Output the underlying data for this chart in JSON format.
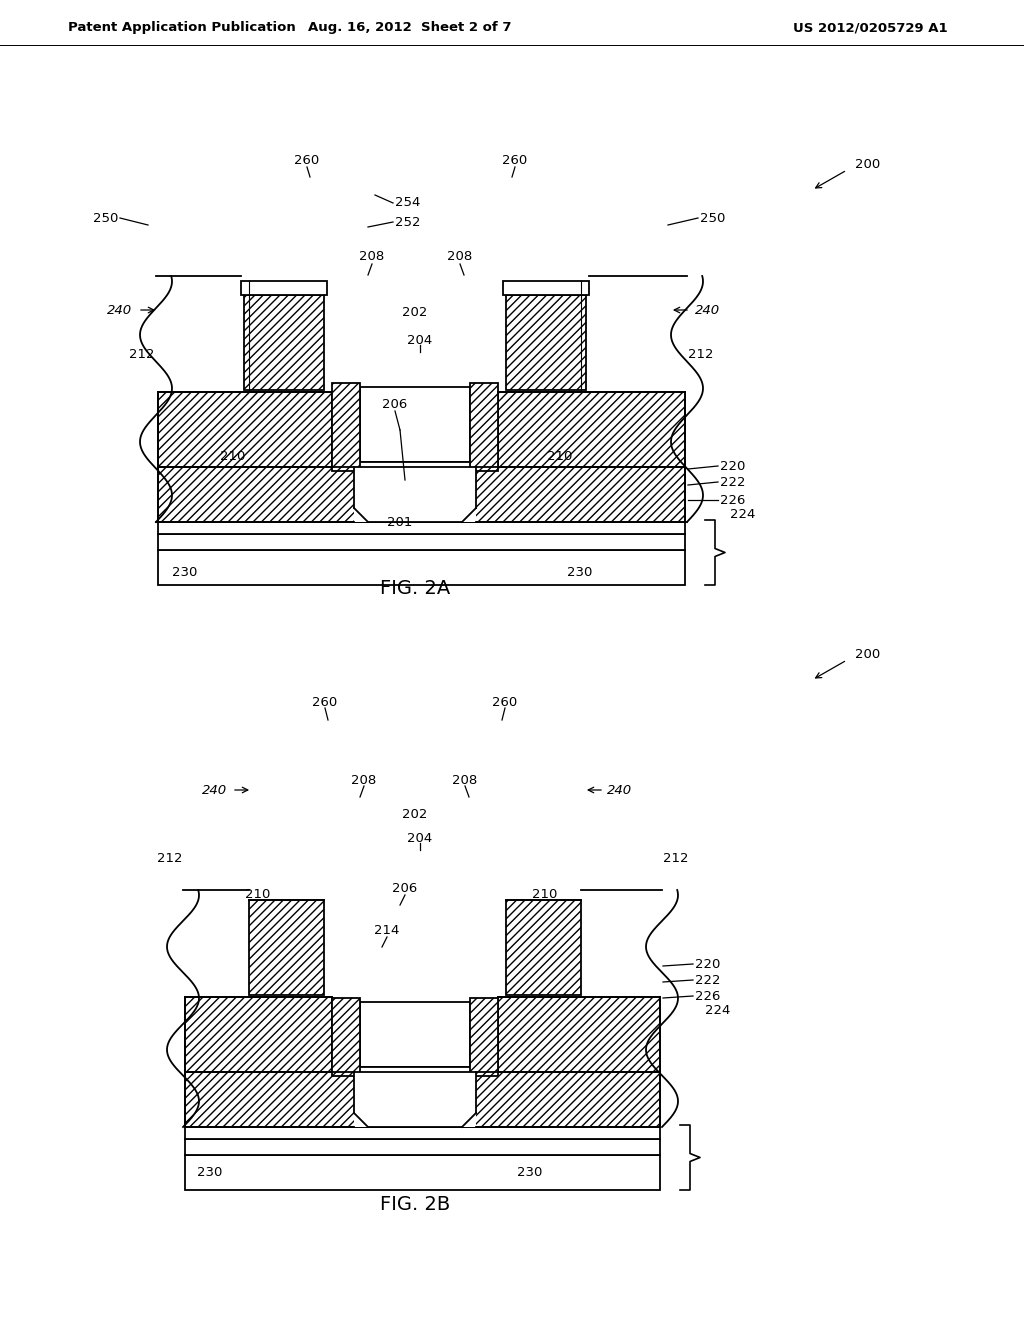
{
  "title_left": "Patent Application Publication",
  "title_mid": "Aug. 16, 2012  Sheet 2 of 7",
  "title_right": "US 2012/0205729 A1",
  "fig2a_label": "FIG. 2A",
  "fig2b_label": "FIG. 2B",
  "bg": "#ffffff",
  "lc": "#000000"
}
